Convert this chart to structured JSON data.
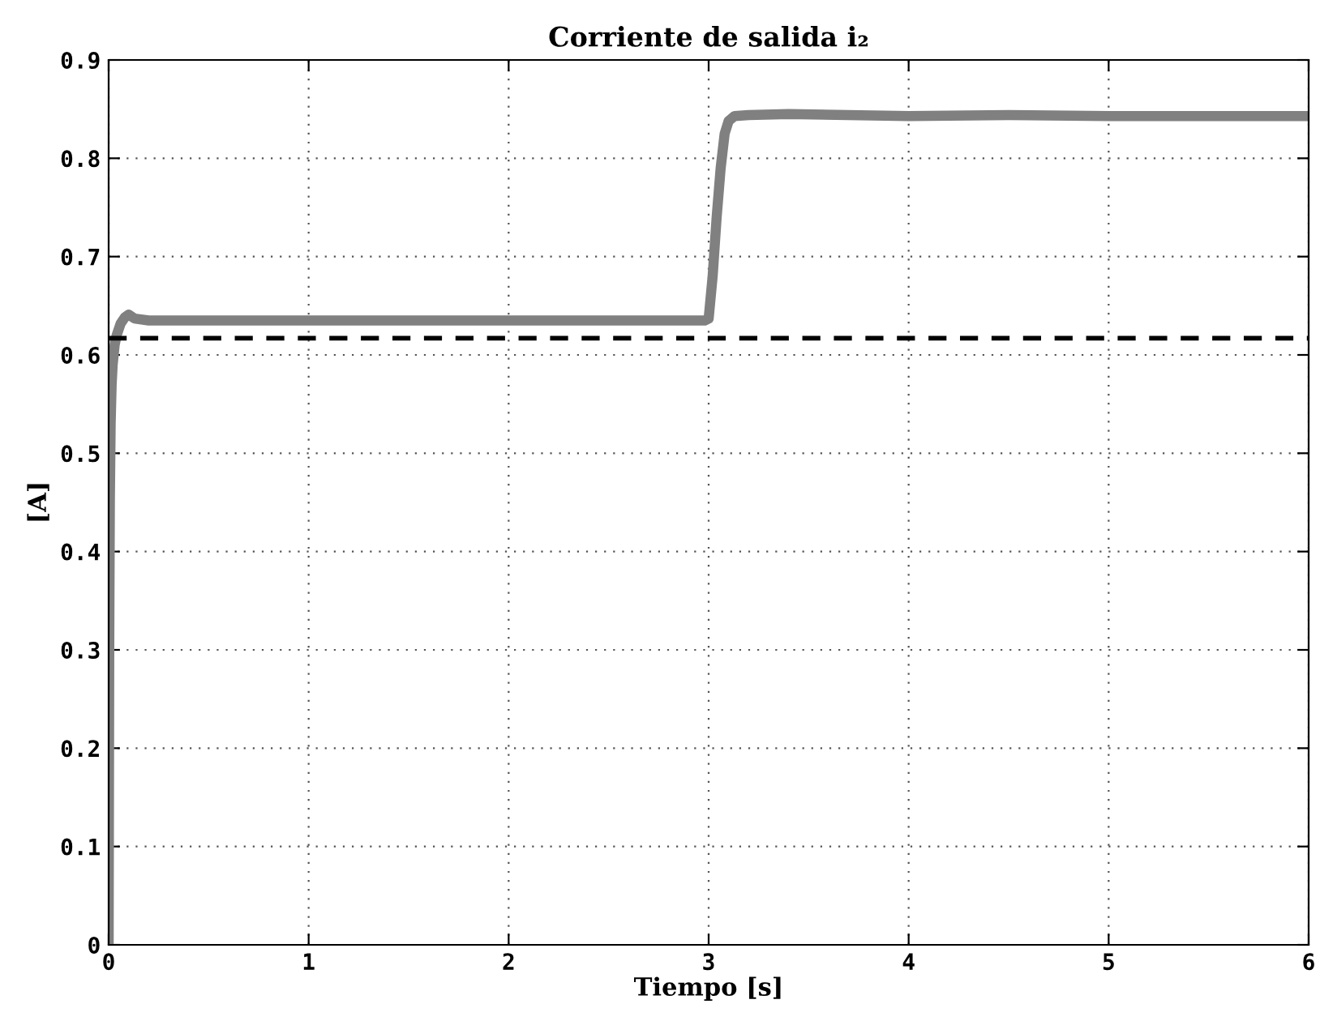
{
  "chart_data": {
    "type": "line",
    "title": "Corriente de salida i₂",
    "xlabel": "Tiempo [s]",
    "ylabel": "[A]",
    "series": [
      {
        "color": "#808080",
        "x": [
          0,
          0.003,
          0.006,
          0.01,
          0.015,
          0.02,
          0.03,
          0.04,
          0.06,
          0.08,
          0.1,
          0.13,
          0.2,
          0.5,
          1,
          1.5,
          2,
          2.5,
          2.98,
          3.0,
          3.02,
          3.04,
          3.06,
          3.08,
          3.1,
          3.13,
          3.2,
          3.4,
          4,
          4.5,
          5,
          5.5,
          6
        ],
        "values": [
          0,
          0.3,
          0.45,
          0.53,
          0.57,
          0.59,
          0.61,
          0.62,
          0.632,
          0.638,
          0.641,
          0.637,
          0.635,
          0.635,
          0.635,
          0.635,
          0.635,
          0.635,
          0.635,
          0.637,
          0.68,
          0.74,
          0.79,
          0.825,
          0.838,
          0.843,
          0.844,
          0.845,
          0.843,
          0.844,
          0.843,
          0.843,
          0.843
        ]
      }
    ],
    "ref_lines": [
      {
        "axis": "y",
        "value": 0.617,
        "color": "#000000",
        "line_style": "dashed"
      }
    ],
    "xlim": [
      0,
      6
    ],
    "xticks": [
      0,
      1,
      2,
      3,
      4,
      5,
      6
    ],
    "ylim": [
      0,
      0.9
    ],
    "yticks": [
      {
        "value": 0,
        "label": "0"
      },
      {
        "value": 0.1,
        "label": "0.1"
      },
      {
        "value": 0.2,
        "label": "0.2"
      },
      {
        "value": 0.3,
        "label": "0.3"
      },
      {
        "value": 0.4,
        "label": "0.4"
      },
      {
        "value": 0.5,
        "label": "0.5"
      },
      {
        "value": 0.6,
        "label": "0.6"
      },
      {
        "value": 0.7,
        "label": "0.7"
      },
      {
        "value": 0.8,
        "label": "0.8"
      },
      {
        "value": 0.9,
        "label": "0.9"
      }
    ],
    "grid": true,
    "line_style": "solid",
    "marker": "none",
    "legend": false
  }
}
